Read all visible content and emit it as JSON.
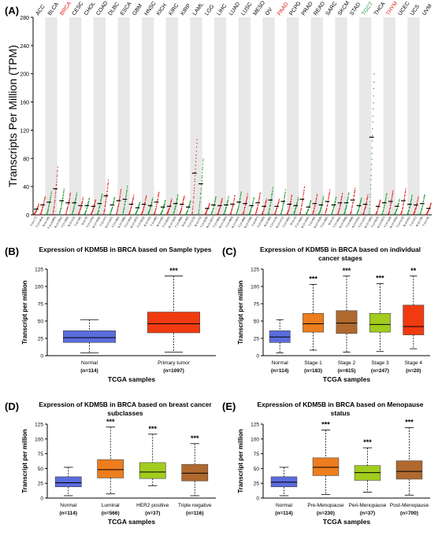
{
  "figure": {
    "panel_labels": [
      "(A)",
      "(B)",
      "(C)",
      "(D)",
      "(E)"
    ],
    "star_color": "#000000"
  },
  "chart_data": [
    {
      "panel": "(A)",
      "type": "scatter",
      "title": "",
      "xlabel": "",
      "ylabel": "Transcripts Per Million (TPM)",
      "ylim": [
        0,
        280
      ],
      "yticks": [
        0,
        40,
        80,
        120,
        160,
        200,
        240,
        280
      ],
      "grid": false,
      "colors": {
        "tumor": "#e0241c",
        "normal": "#1f9a2e",
        "neutral": "#d13a2f",
        "median": "#000000",
        "band": "#e8e8e8"
      },
      "cancer_types": [
        "ACC",
        "BLCA",
        "BRCA",
        "CESC",
        "CHOL",
        "COAD",
        "DLBC",
        "ESCA",
        "GBM",
        "HNSC",
        "KICH",
        "KIRC",
        "KIRP",
        "LAML",
        "LGG",
        "LIHC",
        "LUAD",
        "LUSC",
        "MESO",
        "OV",
        "PAAD",
        "PCPG",
        "PRAD",
        "READ",
        "SARC",
        "SKCM",
        "STAD",
        "TGCT",
        "THCA",
        "THYM",
        "UCEC",
        "UCS",
        "UVM"
      ],
      "cancer_label_colors": [
        "#000000",
        "#000000",
        "#e0241c",
        "#000000",
        "#000000",
        "#000000",
        "#000000",
        "#000000",
        "#000000",
        "#000000",
        "#000000",
        "#000000",
        "#000000",
        "#000000",
        "#000000",
        "#000000",
        "#000000",
        "#000000",
        "#000000",
        "#000000",
        "#e0241c",
        "#000000",
        "#000000",
        "#000000",
        "#000000",
        "#000000",
        "#000000",
        "#1f9a2e",
        "#000000",
        "#e0241c",
        "#000000",
        "#000000",
        "#000000"
      ],
      "group_labels": [
        "T (n=77)",
        "T (n=404)",
        "N (n=28)",
        "T (n=1085)",
        "N (n=291)",
        "T (n=306)",
        "N (n=13)",
        "T (n=36)",
        "N (n=9)",
        "T (n=275)",
        "N (n=349)",
        "T (n=47)",
        "N (n=337)",
        "T (n=182)",
        "N (n=286)",
        "T (n=163)",
        "N (n=207)",
        "T (n=519)",
        "N (n=44)",
        "T (n=66)",
        "N (n=53)",
        "T (n=523)",
        "N (n=100)",
        "T (n=286)",
        "N (n=60)",
        "T (n=173)",
        "N (n=70)",
        "T (n=518)",
        "N (n=207)",
        "T (n=369)",
        "N (n=160)",
        "T (n=483)",
        "N (n=347)",
        "T (n=486)",
        "N (n=338)",
        "T (n=87)",
        "T (n=426)",
        "N (n=88)",
        "T (n=179)",
        "N (n=171)",
        "T (n=182)",
        "N (n=3)",
        "T (n=492)",
        "N (n=152)",
        "T (n=92)",
        "N (n=318)",
        "T (n=262)",
        "N (n=2)",
        "T (n=461)",
        "N (n=558)",
        "T (n=408)",
        "N (n=211)",
        "T (n=137)",
        "N (n=165)",
        "T (n=512)",
        "N (n=337)",
        "T (n=118)",
        "N (n=339)",
        "T (n=174)",
        "N (n=91)",
        "T (n=57)",
        "N (n=78)",
        "T (n=79)"
      ],
      "medians": [
        8,
        14,
        18,
        37,
        20,
        17,
        17,
        13,
        13,
        12,
        16,
        27,
        14,
        20,
        22,
        15,
        10,
        15,
        13,
        18,
        11,
        12,
        16,
        15,
        11,
        59,
        44,
        9,
        14,
        13,
        14,
        15,
        18,
        16,
        13,
        17,
        12,
        21,
        12,
        19,
        15,
        13,
        22,
        11,
        16,
        14,
        19,
        14,
        17,
        17,
        21,
        13,
        15,
        110,
        12,
        17,
        19,
        12,
        20,
        15,
        14,
        16,
        9
      ]
    },
    {
      "panel": "(B)",
      "type": "box",
      "title": "Expression of KDM5B in BRCA based on Sample types",
      "xlabel": "TCGA samples",
      "ylabel": "Transcript per million",
      "ylim": [
        0,
        125
      ],
      "yticks": [
        0,
        25,
        50,
        75,
        100,
        125
      ],
      "categories": [
        "Normal",
        "Primary tumor"
      ],
      "n_labels": [
        "(n=114)",
        "(n=1097)"
      ],
      "colors": [
        "#5b6cdc",
        "#f03a10"
      ],
      "significance": [
        "",
        "***"
      ],
      "boxes": [
        {
          "min": 4,
          "q1": 19,
          "median": 26,
          "q3": 36,
          "max": 52
        },
        {
          "min": 5,
          "q1": 33,
          "median": 46,
          "q3": 63,
          "max": 115
        }
      ]
    },
    {
      "panel": "(C)",
      "type": "box",
      "title": "Expression of KDM5B in BRCA based on individual cancer stages",
      "xlabel": "TCGA samples",
      "ylabel": "Transcript per million",
      "ylim": [
        0,
        125
      ],
      "yticks": [
        0,
        25,
        50,
        75,
        100,
        125
      ],
      "categories": [
        "Normal",
        "Stage 1",
        "Stage 2",
        "Stage 3",
        "Stage 4"
      ],
      "n_labels": [
        "(n=114)",
        "(n=183)",
        "(n=615)",
        "(n=247)",
        "(n=20)"
      ],
      "colors": [
        "#5b6cdc",
        "#ee7d1e",
        "#b0692e",
        "#a2cc1e",
        "#f03a10"
      ],
      "significance": [
        "",
        "***",
        "***",
        "***",
        "**"
      ],
      "boxes": [
        {
          "min": 4,
          "q1": 19,
          "median": 27,
          "q3": 36,
          "max": 52
        },
        {
          "min": 8,
          "q1": 34,
          "median": 46,
          "q3": 61,
          "max": 103
        },
        {
          "min": 5,
          "q1": 32,
          "median": 47,
          "q3": 65,
          "max": 115
        },
        {
          "min": 6,
          "q1": 34,
          "median": 45,
          "q3": 61,
          "max": 104
        },
        {
          "min": 10,
          "q1": 30,
          "median": 42,
          "q3": 73,
          "max": 115
        }
      ]
    },
    {
      "panel": "(D)",
      "type": "box",
      "title": "Expression of KDM5B in BRCA based on breast cancer subclasses",
      "xlabel": "TCGA samples",
      "ylabel": "Transcript per million",
      "ylim": [
        0,
        125
      ],
      "yticks": [
        0,
        25,
        50,
        75,
        100,
        125
      ],
      "categories": [
        "Normal",
        "Luminal",
        "HER2 positive",
        "Triple negative"
      ],
      "n_labels": [
        "(n=114)",
        "(n=566)",
        "(n=37)",
        "(n=116)"
      ],
      "colors": [
        "#5b6cdc",
        "#ee7d1e",
        "#a2cc1e",
        "#b0692e"
      ],
      "significance": [
        "",
        "***",
        "***",
        "***"
      ],
      "boxes": [
        {
          "min": 4,
          "q1": 19,
          "median": 26,
          "q3": 36,
          "max": 52
        },
        {
          "min": 7,
          "q1": 34,
          "median": 48,
          "q3": 65,
          "max": 120
        },
        {
          "min": 21,
          "q1": 33,
          "median": 44,
          "q3": 60,
          "max": 108
        },
        {
          "min": 4,
          "q1": 29,
          "median": 42,
          "q3": 57,
          "max": 92
        }
      ]
    },
    {
      "panel": "(E)",
      "type": "box",
      "title": "Expression of KDM5B in BRCA based on Menopause status",
      "xlabel": "TCGA samples",
      "ylabel": "Transcript per million",
      "ylim": [
        0,
        125
      ],
      "yticks": [
        0,
        25,
        50,
        75,
        100,
        125
      ],
      "categories": [
        "Normal",
        "Pre-Menopause",
        "Peri-Menopause",
        "Post-Menopause"
      ],
      "n_labels": [
        "(n=114)",
        "(n=230)",
        "(n=37)",
        "(n=700)"
      ],
      "colors": [
        "#5b6cdc",
        "#ee7d1e",
        "#a2cc1e",
        "#b0692e"
      ],
      "significance": [
        "",
        "***",
        "***",
        "***"
      ],
      "boxes": [
        {
          "min": 4,
          "q1": 19,
          "median": 27,
          "q3": 36,
          "max": 52
        },
        {
          "min": 6,
          "q1": 38,
          "median": 52,
          "q3": 68,
          "max": 115
        },
        {
          "min": 10,
          "q1": 30,
          "median": 43,
          "q3": 55,
          "max": 85
        },
        {
          "min": 5,
          "q1": 32,
          "median": 45,
          "q3": 63,
          "max": 119
        }
      ]
    }
  ]
}
